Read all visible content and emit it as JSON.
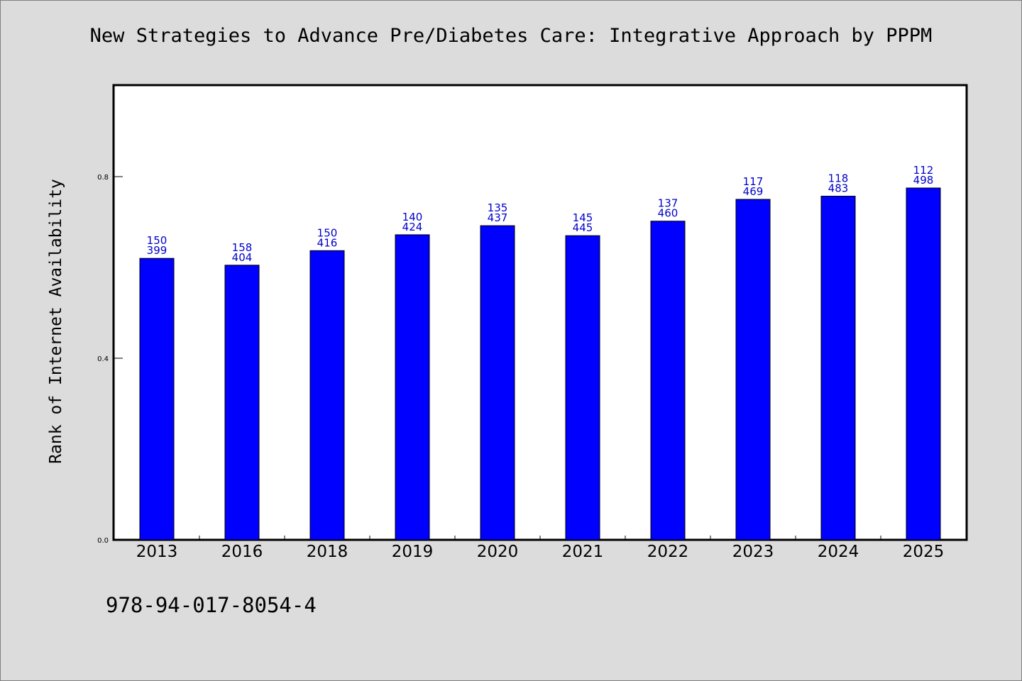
{
  "chart_data": {
    "type": "bar",
    "title": "New Strategies to Advance Pre/Diabetes Care: Integrative Approach by PPPM",
    "xlabel": "",
    "ylabel": "Rank of Internet Availability",
    "ylim": [
      0,
      1.0
    ],
    "yticks": [
      "0.0",
      "0.4",
      "0.8"
    ],
    "ytick_values": [
      0.0,
      0.4,
      0.8
    ],
    "grid": false,
    "legend": "none",
    "colors": {
      "bar": "#0000ff",
      "bar_edge": "#000000",
      "data_label": "#0000cc",
      "plot_bg": "#ffffff",
      "figure_bg": "#dcdcdc"
    },
    "categories": [
      "2013",
      "2016",
      "2018",
      "2019",
      "2020",
      "2021",
      "2022",
      "2023",
      "2024",
      "2025"
    ],
    "values": [
      0.62,
      0.605,
      0.637,
      0.672,
      0.692,
      0.67,
      0.702,
      0.75,
      0.757,
      0.775
    ],
    "labels_top": [
      "150",
      "158",
      "150",
      "140",
      "135",
      "145",
      "137",
      "117",
      "118",
      "112"
    ],
    "labels_bottom": [
      "399",
      "404",
      "416",
      "424",
      "437",
      "445",
      "460",
      "469",
      "483",
      "498"
    ]
  },
  "footer": {
    "isbn": "978-94-017-8054-4"
  }
}
